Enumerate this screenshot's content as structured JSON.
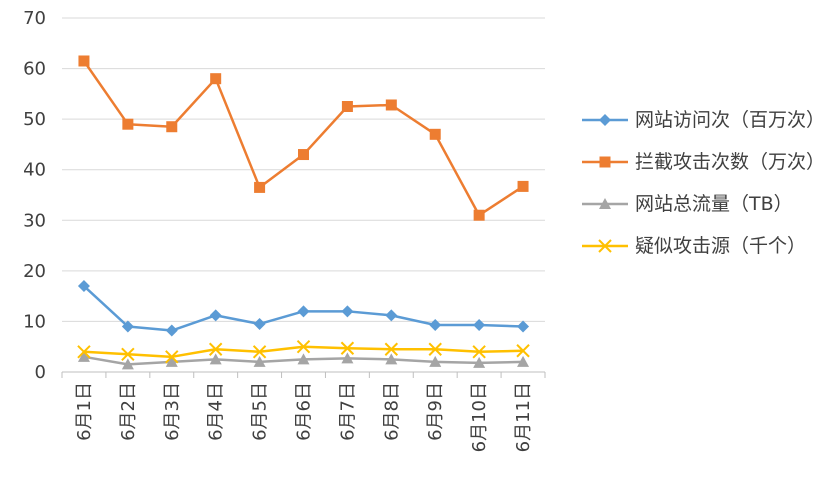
{
  "chart_data": {
    "type": "line",
    "categories": [
      "6月1日",
      "6月2日",
      "6月3日",
      "6月4日",
      "6月5日",
      "6月6日",
      "6月7日",
      "6月8日",
      "6月9日",
      "6月10日",
      "6月11日"
    ],
    "ylim": [
      0,
      70
    ],
    "yticks": [
      0,
      10,
      20,
      30,
      40,
      50,
      60,
      70
    ],
    "grid": true,
    "legend_position": "right",
    "series": [
      {
        "name": "网站访问次（百万次）",
        "color": "#5b9bd5",
        "marker": "diamond",
        "values": [
          17,
          9,
          8.2,
          11.2,
          9.5,
          12,
          12,
          11.2,
          9.3,
          9.3,
          9
        ]
      },
      {
        "name": "拦截攻击次数（万次）",
        "color": "#ed7d31",
        "marker": "square",
        "values": [
          61.5,
          49,
          48.5,
          58,
          36.5,
          43,
          52.5,
          52.8,
          47,
          31,
          36.7
        ]
      },
      {
        "name": "网站总流量（TB）",
        "color": "#a5a5a5",
        "marker": "triangle",
        "values": [
          3,
          1.5,
          2,
          2.5,
          2,
          2.5,
          2.7,
          2.5,
          2,
          1.8,
          2
        ]
      },
      {
        "name": "疑似攻击源（千个）",
        "color": "#ffc000",
        "marker": "x",
        "values": [
          4,
          3.5,
          3,
          4.5,
          4,
          5,
          4.7,
          4.5,
          4.5,
          4,
          4.2
        ]
      }
    ]
  }
}
